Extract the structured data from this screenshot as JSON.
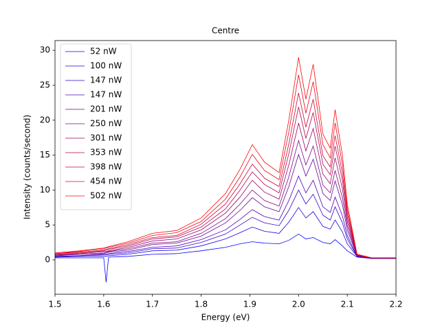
{
  "chart_data": {
    "type": "line",
    "title": "Centre",
    "x_label": "Energy (eV)",
    "y_label": "Intensity (counts/second)",
    "x": [
      1.5,
      1.55,
      1.6,
      1.605,
      1.61,
      1.65,
      1.7,
      1.75,
      1.8,
      1.85,
      1.88,
      1.905,
      1.93,
      1.96,
      1.98,
      2.0,
      2.015,
      2.03,
      2.05,
      2.065,
      2.075,
      2.09,
      2.1,
      2.12,
      2.15,
      2.2
    ],
    "series": [
      {
        "name": "52 nW",
        "color": "#0000ff",
        "values": [
          0.3,
          0.3,
          0.3,
          -3.2,
          0.4,
          0.5,
          0.8,
          0.9,
          1.3,
          1.8,
          2.3,
          2.6,
          2.4,
          2.3,
          2.8,
          3.7,
          3.0,
          3.2,
          2.5,
          2.3,
          2.9,
          2.0,
          1.3,
          0.4,
          0.2,
          0.2
        ]
      },
      {
        "name": "100 nW",
        "color": "#1a00e5",
        "values": [
          0.4,
          0.5,
          0.5,
          0.5,
          0.6,
          0.8,
          1.3,
          1.4,
          2.0,
          3.0,
          3.9,
          4.7,
          4.1,
          3.8,
          5.4,
          7.5,
          6.0,
          6.9,
          4.8,
          4.4,
          5.7,
          4.0,
          2.3,
          0.5,
          0.2,
          0.2
        ]
      },
      {
        "name": "147 nW",
        "color": "#3300cc",
        "values": [
          0.5,
          0.6,
          0.7,
          0.7,
          0.8,
          1.0,
          1.6,
          1.7,
          2.5,
          3.7,
          5.0,
          6.1,
          5.3,
          4.9,
          7.1,
          10.0,
          8.0,
          9.4,
          6.4,
          5.7,
          7.6,
          5.3,
          3.0,
          0.5,
          0.2,
          0.2
        ]
      },
      {
        "name": "147 nW",
        "color": "#4d00b3",
        "values": [
          0.5,
          0.6,
          0.8,
          0.8,
          0.9,
          1.2,
          1.8,
          2.0,
          2.9,
          4.3,
          5.8,
          7.2,
          6.2,
          5.7,
          8.5,
          12.0,
          9.6,
          11.4,
          7.6,
          6.8,
          9.0,
          6.3,
          3.5,
          0.5,
          0.2,
          0.2
        ]
      },
      {
        "name": "201 nW",
        "color": "#660099",
        "values": [
          0.6,
          0.8,
          0.9,
          1.0,
          1.1,
          1.4,
          2.2,
          2.4,
          3.4,
          5.3,
          7.1,
          8.9,
          7.6,
          6.9,
          10.5,
          15.1,
          12.0,
          14.4,
          9.5,
          8.5,
          11.3,
          7.9,
          4.3,
          0.6,
          0.2,
          0.2
        ]
      },
      {
        "name": "250 nW",
        "color": "#800080",
        "values": [
          0.7,
          0.8,
          1.0,
          1.1,
          1.2,
          1.6,
          2.4,
          2.6,
          3.8,
          5.9,
          8.0,
          10.0,
          8.5,
          7.7,
          11.9,
          17.1,
          13.6,
          16.3,
          10.7,
          9.6,
          12.8,
          8.9,
          4.9,
          0.6,
          0.3,
          0.3
        ]
      },
      {
        "name": "301 nW",
        "color": "#990066",
        "values": [
          0.7,
          0.9,
          1.2,
          1.2,
          1.3,
          1.8,
          2.7,
          3.0,
          4.3,
          6.7,
          9.0,
          11.4,
          9.7,
          8.7,
          13.6,
          19.6,
          15.6,
          18.8,
          12.3,
          10.9,
          14.6,
          10.2,
          5.5,
          0.7,
          0.3,
          0.3
        ]
      },
      {
        "name": "353 nW",
        "color": "#b3004d",
        "values": [
          0.8,
          1.0,
          1.3,
          1.4,
          1.5,
          2.0,
          3.0,
          3.3,
          4.7,
          7.3,
          10.0,
          12.6,
          10.8,
          9.6,
          15.2,
          21.9,
          17.4,
          21.1,
          13.7,
          12.2,
          16.3,
          11.4,
          6.1,
          0.7,
          0.3,
          0.3
        ]
      },
      {
        "name": "398 nW",
        "color": "#cc0033",
        "values": [
          0.9,
          1.1,
          1.4,
          1.5,
          1.6,
          2.2,
          3.2,
          3.5,
          5.1,
          8.0,
          10.9,
          13.7,
          11.7,
          10.5,
          16.6,
          23.9,
          19.0,
          23.0,
          14.9,
          13.3,
          17.8,
          12.4,
          6.7,
          0.7,
          0.3,
          0.3
        ]
      },
      {
        "name": "454 nW",
        "color": "#e6001a",
        "values": [
          0.9,
          1.2,
          1.6,
          1.7,
          1.8,
          2.4,
          3.5,
          3.9,
          5.5,
          8.7,
          11.9,
          15.1,
          12.8,
          11.5,
          18.3,
          26.5,
          21.0,
          25.5,
          16.5,
          14.6,
          19.6,
          13.7,
          7.3,
          0.8,
          0.3,
          0.3
        ]
      },
      {
        "name": "502 nW",
        "color": "#ff0000",
        "values": [
          1.0,
          1.3,
          1.7,
          1.8,
          1.9,
          2.6,
          3.8,
          4.2,
          6.0,
          9.5,
          13.0,
          16.5,
          14.0,
          12.5,
          20.0,
          29.0,
          23.0,
          28.0,
          18.0,
          16.0,
          21.5,
          15.0,
          8.0,
          0.8,
          0.3,
          0.3
        ]
      }
    ],
    "xlim": [
      1.5,
      2.2
    ],
    "xticks": [
      1.5,
      1.6,
      1.7,
      1.8,
      1.9,
      {
        "value": 2,
        "label": "2.0"
      },
      2.1,
      2.2
    ],
    "ylim": [
      -4.92,
      31.4
    ],
    "yticks": [
      0,
      5,
      10,
      15,
      20,
      25,
      30
    ],
    "legend": "upper-left"
  }
}
